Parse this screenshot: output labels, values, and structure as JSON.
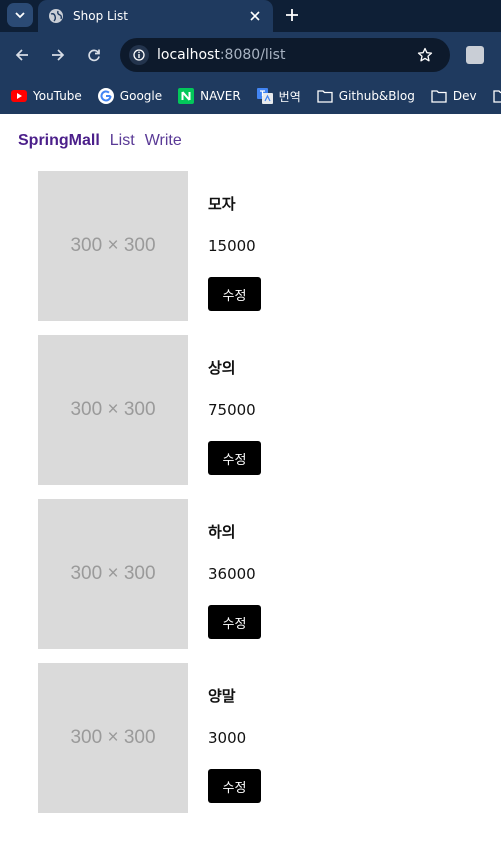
{
  "browser": {
    "tab_title": "Shop List",
    "url_host": "localhost",
    "url_rest": ":8080/list",
    "bookmarks": [
      {
        "label": "YouTube",
        "icon": "youtube-icon"
      },
      {
        "label": "Google",
        "icon": "google-icon"
      },
      {
        "label": "NAVER",
        "icon": "naver-icon"
      },
      {
        "label": "번역",
        "icon": "translate-icon"
      },
      {
        "label": "Github&Blog",
        "icon": "folder-icon"
      },
      {
        "label": "Dev",
        "icon": "folder-icon"
      }
    ]
  },
  "nav": {
    "brand": "SpringMall",
    "links": [
      "List",
      "Write"
    ]
  },
  "items": [
    {
      "image_placeholder": "300 × 300",
      "title": "모자",
      "price": "15000",
      "edit_label": "수정"
    },
    {
      "image_placeholder": "300 × 300",
      "title": "상의",
      "price": "75000",
      "edit_label": "수정"
    },
    {
      "image_placeholder": "300 × 300",
      "title": "하의",
      "price": "36000",
      "edit_label": "수정"
    },
    {
      "image_placeholder": "300 × 300",
      "title": "양말",
      "price": "3000",
      "edit_label": "수정"
    }
  ],
  "colors": {
    "brand": "#4b1f8a",
    "chrome": "#1f3a5f",
    "button": "#000000",
    "placeholder": "#dadada"
  }
}
